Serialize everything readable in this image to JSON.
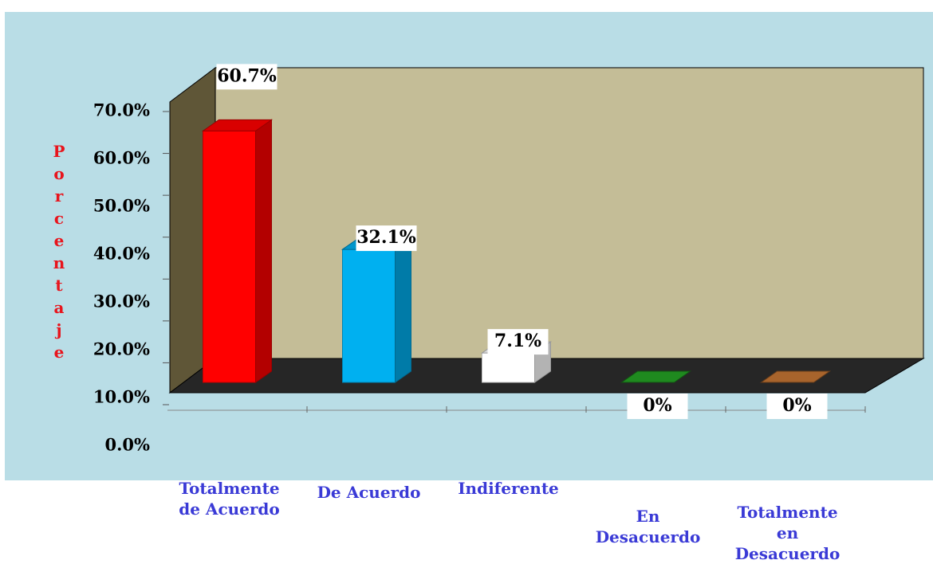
{
  "chart_data": {
    "type": "bar3d",
    "y_label": "Porcentaje",
    "categories": [
      "Totalmente de Acuerdo",
      "De Acuerdo",
      "Indiferente",
      "En Desacuerdo",
      "Totalmente en Desacuerdo"
    ],
    "values": [
      60.7,
      32.1,
      7.1,
      0,
      0
    ],
    "value_labels": [
      "60.7%",
      "32.1%",
      "7.1%",
      "0%",
      "0%"
    ],
    "colors": [
      "#ff0000",
      "#00b0f0",
      "#ffffff",
      "#1f8a1f",
      "#a8642c"
    ],
    "ylim": [
      0,
      70
    ],
    "yticks": [
      {
        "value": 0,
        "label": "0.0%"
      },
      {
        "value": 10,
        "label": "10.0%"
      },
      {
        "value": 20,
        "label": "20.0%"
      },
      {
        "value": 30,
        "label": "30.0%"
      },
      {
        "value": 40,
        "label": "40.0%"
      },
      {
        "value": 50,
        "label": "50.0%"
      },
      {
        "value": 60,
        "label": "60.0%"
      },
      {
        "value": 70,
        "label": "70.0%"
      }
    ]
  }
}
